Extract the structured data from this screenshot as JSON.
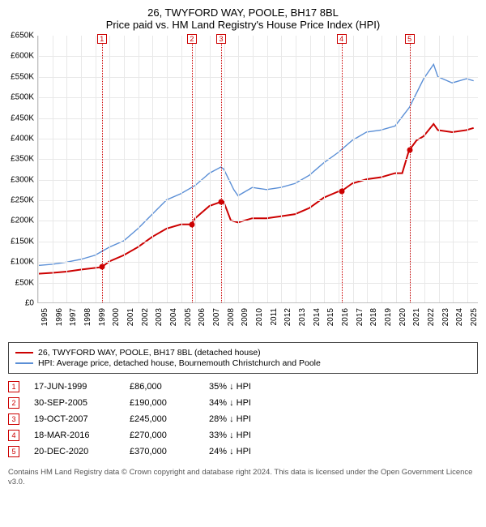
{
  "title": "26, TWYFORD WAY, POOLE, BH17 8BL",
  "subtitle": "Price paid vs. HM Land Registry's House Price Index (HPI)",
  "chart": {
    "type": "line",
    "background_color": "#ffffff",
    "grid_color": "#e8e8e8",
    "axis_color": "#c0c0c0",
    "ylim": [
      0,
      650
    ],
    "ytick_step": 50,
    "ytick_prefix": "£",
    "ytick_suffix": "K",
    "xlim": [
      1995,
      2025.8
    ],
    "xtick_step": 1,
    "label_fontsize": 10,
    "series": [
      {
        "name": "price_paid",
        "color": "#cc0000",
        "width": 2,
        "points": [
          [
            1995,
            70
          ],
          [
            1996,
            72
          ],
          [
            1997,
            75
          ],
          [
            1998,
            80
          ],
          [
            1999.46,
            86
          ],
          [
            2000,
            100
          ],
          [
            2001,
            115
          ],
          [
            2002,
            135
          ],
          [
            2003,
            160
          ],
          [
            2004,
            180
          ],
          [
            2005,
            190
          ],
          [
            2005.75,
            190
          ],
          [
            2006,
            205
          ],
          [
            2007,
            235
          ],
          [
            2007.8,
            245
          ],
          [
            2008,
            245
          ],
          [
            2008.5,
            200
          ],
          [
            2009,
            195
          ],
          [
            2010,
            205
          ],
          [
            2011,
            205
          ],
          [
            2012,
            210
          ],
          [
            2013,
            215
          ],
          [
            2014,
            230
          ],
          [
            2015,
            255
          ],
          [
            2016,
            270
          ],
          [
            2016.21,
            270
          ],
          [
            2017,
            290
          ],
          [
            2018,
            300
          ],
          [
            2019,
            305
          ],
          [
            2020,
            315
          ],
          [
            2020.5,
            315
          ],
          [
            2020.97,
            370
          ],
          [
            2021.5,
            395
          ],
          [
            2022,
            405
          ],
          [
            2022.7,
            435
          ],
          [
            2023,
            420
          ],
          [
            2024,
            415
          ],
          [
            2025,
            420
          ],
          [
            2025.5,
            425
          ]
        ]
      },
      {
        "name": "hpi",
        "color": "#5b8fd6",
        "width": 1.4,
        "points": [
          [
            1995,
            90
          ],
          [
            1996,
            93
          ],
          [
            1997,
            98
          ],
          [
            1998,
            105
          ],
          [
            1999,
            115
          ],
          [
            2000,
            135
          ],
          [
            2001,
            150
          ],
          [
            2002,
            180
          ],
          [
            2003,
            215
          ],
          [
            2004,
            250
          ],
          [
            2005,
            265
          ],
          [
            2006,
            285
          ],
          [
            2007,
            315
          ],
          [
            2007.8,
            330
          ],
          [
            2008,
            325
          ],
          [
            2008.7,
            275
          ],
          [
            2009,
            260
          ],
          [
            2010,
            280
          ],
          [
            2011,
            275
          ],
          [
            2012,
            280
          ],
          [
            2013,
            290
          ],
          [
            2014,
            310
          ],
          [
            2015,
            340
          ],
          [
            2016,
            365
          ],
          [
            2017,
            395
          ],
          [
            2018,
            415
          ],
          [
            2019,
            420
          ],
          [
            2020,
            430
          ],
          [
            2021,
            475
          ],
          [
            2022,
            545
          ],
          [
            2022.7,
            580
          ],
          [
            2023,
            550
          ],
          [
            2024,
            535
          ],
          [
            2025,
            545
          ],
          [
            2025.5,
            540
          ]
        ]
      }
    ],
    "markers": [
      {
        "n": "1",
        "x": 1999.46,
        "y": 86
      },
      {
        "n": "2",
        "x": 2005.75,
        "y": 190
      },
      {
        "n": "3",
        "x": 2007.8,
        "y": 245
      },
      {
        "n": "4",
        "x": 2016.21,
        "y": 270
      },
      {
        "n": "5",
        "x": 2020.97,
        "y": 370
      }
    ]
  },
  "legend": {
    "items": [
      {
        "color": "#cc0000",
        "label": "26, TWYFORD WAY, POOLE, BH17 8BL (detached house)"
      },
      {
        "color": "#5b8fd6",
        "label": "HPI: Average price, detached house, Bournemouth Christchurch and Poole"
      }
    ]
  },
  "sales": [
    {
      "n": "1",
      "date": "17-JUN-1999",
      "price": "£86,000",
      "diff": "35% ↓ HPI"
    },
    {
      "n": "2",
      "date": "30-SEP-2005",
      "price": "£190,000",
      "diff": "34% ↓ HPI"
    },
    {
      "n": "3",
      "date": "19-OCT-2007",
      "price": "£245,000",
      "diff": "28% ↓ HPI"
    },
    {
      "n": "4",
      "date": "18-MAR-2016",
      "price": "£270,000",
      "diff": "33% ↓ HPI"
    },
    {
      "n": "5",
      "date": "20-DEC-2020",
      "price": "£370,000",
      "diff": "24% ↓ HPI"
    }
  ],
  "footnote": "Contains HM Land Registry data © Crown copyright and database right 2024. This data is licensed under the Open Government Licence v3.0."
}
